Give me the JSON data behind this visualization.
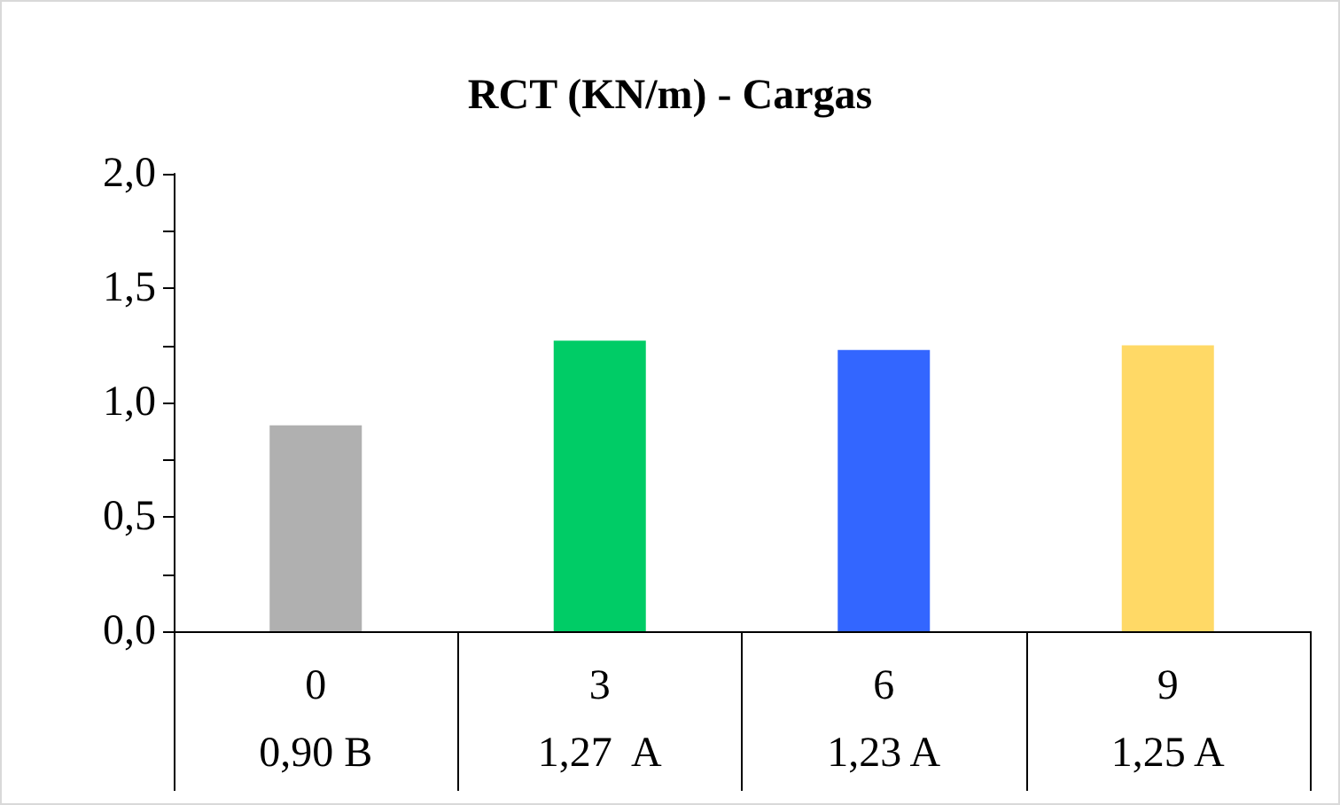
{
  "chart_data": {
    "type": "bar",
    "title": "RCT (KN/m) - Cargas",
    "categories": [
      "0",
      "3",
      "6",
      "9"
    ],
    "values": [
      0.9,
      1.27,
      1.23,
      1.25
    ],
    "colors": [
      "#b0b0b0",
      "#00cc66",
      "#3366ff",
      "#ffd966"
    ],
    "value_labels": [
      "0,90 B",
      "1,27  A",
      "1,23 A",
      "1,25 A"
    ],
    "ylim": [
      0,
      2
    ],
    "yticks": [
      {
        "value": 0,
        "label": "0,0"
      },
      {
        "value": 0.25,
        "label": null
      },
      {
        "value": 0.5,
        "label": "0,5"
      },
      {
        "value": 0.75,
        "label": null
      },
      {
        "value": 1,
        "label": "1,0"
      },
      {
        "value": 1.25,
        "label": null
      },
      {
        "value": 1.5,
        "label": "1,5"
      },
      {
        "value": 1.75,
        "label": null
      },
      {
        "value": 2,
        "label": "2,0"
      }
    ],
    "grid": false
  }
}
